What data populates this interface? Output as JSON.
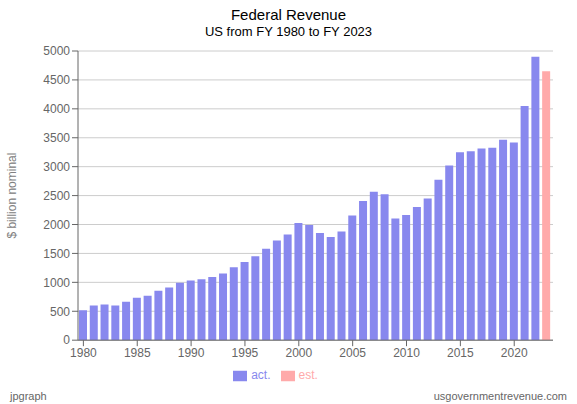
{
  "chart_data": {
    "type": "bar",
    "title": "Federal Revenue",
    "subtitle": "US from FY 1980 to FY 2023",
    "ylabel": "$ billion nominal",
    "annotations": [
      "jpgraph",
      "usgovernmentrevenue.com"
    ],
    "x": [
      1980,
      1981,
      1982,
      1983,
      1984,
      1985,
      1986,
      1987,
      1988,
      1989,
      1990,
      1991,
      1992,
      1993,
      1994,
      1995,
      1996,
      1997,
      1998,
      1999,
      2000,
      2001,
      2002,
      2003,
      2004,
      2005,
      2006,
      2007,
      2008,
      2009,
      2010,
      2011,
      2012,
      2013,
      2014,
      2015,
      2016,
      2017,
      2018,
      2019,
      2020,
      2021,
      2022,
      2023
    ],
    "xlim": [
      1979.5,
      2023.6
    ],
    "xticks": [
      1980,
      1985,
      1990,
      1995,
      2000,
      2005,
      2010,
      2015,
      2020
    ],
    "ylim": [
      0,
      5000
    ],
    "yticks": [
      0,
      500,
      1000,
      1500,
      2000,
      2500,
      3000,
      3500,
      4000,
      4500,
      5000
    ],
    "grid": true,
    "legend": "bottom",
    "series": [
      {
        "name": "act.",
        "color": "#8888ee",
        "values": [
          517,
          599,
          618,
          601,
          666,
          734,
          769,
          854,
          909,
          991,
          1032,
          1055,
          1091,
          1154,
          1259,
          1352,
          1453,
          1579,
          1722,
          1827,
          2025,
          1991,
          1853,
          1782,
          1880,
          2154,
          2407,
          2568,
          2524,
          2105,
          2163,
          2304,
          2450,
          2775,
          3022,
          3250,
          3268,
          3316,
          3329,
          3464,
          3420,
          4047,
          4900,
          null
        ]
      },
      {
        "name": "est.",
        "color": "#ffaaaa",
        "values": [
          null,
          null,
          null,
          null,
          null,
          null,
          null,
          null,
          null,
          null,
          null,
          null,
          null,
          null,
          null,
          null,
          null,
          null,
          null,
          null,
          null,
          null,
          null,
          null,
          null,
          null,
          null,
          null,
          null,
          null,
          null,
          null,
          null,
          null,
          null,
          null,
          null,
          null,
          null,
          null,
          null,
          null,
          null,
          4650
        ]
      }
    ]
  }
}
